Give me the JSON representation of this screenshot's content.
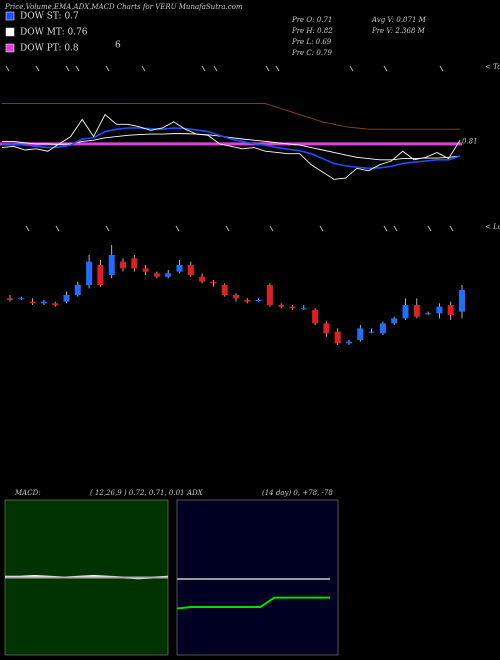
{
  "header": {
    "title": "Price,Volume,EMA,ADX,MACD Charts for VERU MunafaSutra.com",
    "note": "6",
    "legend": [
      {
        "name": "DOW ST: 0.7",
        "color": "#1e4fff"
      },
      {
        "name": "DOW MT: 0.76",
        "color": "#ffffff"
      },
      {
        "name": "DOW PT: 0.8",
        "color": "#e040e0"
      }
    ],
    "stats": [
      "Pre  O: 0.71",
      "Pre  H: 0.82",
      "Pre  L: 0.69",
      "Pre  C: 0.79"
    ],
    "volume": [
      "Avg V: 0.071 M",
      "Pre  V: 2.368 M"
    ],
    "tops": "< Tops",
    "lows": "< Lows"
  },
  "chart_data": [
    {
      "type": "line",
      "ylim": [
        0.55,
        1.0
      ],
      "last_value": 0.81,
      "series": [
        {
          "color": "#8b4513",
          "values": [
            0.965,
            0.965,
            0.965,
            0.965,
            0.965,
            0.965,
            0.965,
            0.965,
            0.965,
            0.965,
            0.965,
            0.965,
            0.965,
            0.965,
            0.965,
            0.965,
            0.965,
            0.965,
            0.965,
            0.965,
            0.965,
            0.965,
            0.965,
            0.965,
            0.95,
            0.935,
            0.92,
            0.905,
            0.89,
            0.88,
            0.87,
            0.865,
            0.86,
            0.86,
            0.86,
            0.86,
            0.86,
            0.86,
            0.86,
            0.86,
            0.86
          ]
        },
        {
          "color": "#ffffff",
          "values": [
            0.81,
            0.81,
            0.805,
            0.8,
            0.8,
            0.798,
            0.8,
            0.81,
            0.815,
            0.825,
            0.83,
            0.835,
            0.838,
            0.84,
            0.84,
            0.842,
            0.842,
            0.84,
            0.837,
            0.832,
            0.826,
            0.82,
            0.815,
            0.81,
            0.805,
            0.8,
            0.795,
            0.785,
            0.775,
            0.765,
            0.755,
            0.745,
            0.74,
            0.735,
            0.735,
            0.74,
            0.74,
            0.742,
            0.742,
            0.745,
            0.75
          ]
        },
        {
          "color": "#1e4fff",
          "values": [
            0.8,
            0.8,
            0.795,
            0.79,
            0.785,
            0.787,
            0.795,
            0.82,
            0.825,
            0.85,
            0.86,
            0.865,
            0.865,
            0.862,
            0.86,
            0.865,
            0.863,
            0.857,
            0.85,
            0.835,
            0.82,
            0.81,
            0.8,
            0.795,
            0.785,
            0.778,
            0.772,
            0.76,
            0.74,
            0.72,
            0.71,
            0.705,
            0.7,
            0.702,
            0.708,
            0.72,
            0.725,
            0.73,
            0.735,
            0.735,
            0.75
          ]
        },
        {
          "color": "#ffffff",
          "values": [
            0.785,
            0.79,
            0.775,
            0.78,
            0.77,
            0.8,
            0.83,
            0.9,
            0.83,
            0.92,
            0.88,
            0.88,
            0.87,
            0.855,
            0.865,
            0.89,
            0.86,
            0.84,
            0.835,
            0.8,
            0.79,
            0.78,
            0.785,
            0.77,
            0.765,
            0.76,
            0.76,
            0.715,
            0.685,
            0.655,
            0.66,
            0.7,
            0.69,
            0.715,
            0.73,
            0.77,
            0.735,
            0.745,
            0.765,
            0.74,
            0.815
          ]
        }
      ],
      "hline": {
        "value": 0.8,
        "color": "#e040e0"
      }
    },
    {
      "type": "candlestick",
      "ylim": [
        0.62,
        0.98
      ],
      "up_color": "#1e6fff",
      "down_color": "#e02020",
      "open": [
        0.79,
        0.79,
        0.78,
        0.775,
        0.775,
        0.78,
        0.8,
        0.83,
        0.89,
        0.86,
        0.9,
        0.91,
        0.88,
        0.865,
        0.855,
        0.87,
        0.89,
        0.855,
        0.84,
        0.83,
        0.8,
        0.785,
        0.785,
        0.83,
        0.77,
        0.765,
        0.76,
        0.755,
        0.715,
        0.69,
        0.655,
        0.665,
        0.69,
        0.685,
        0.715,
        0.73,
        0.77,
        0.745,
        0.745,
        0.77,
        0.75
      ],
      "high": [
        0.8,
        0.795,
        0.79,
        0.785,
        0.78,
        0.81,
        0.84,
        0.92,
        0.905,
        0.95,
        0.91,
        0.92,
        0.89,
        0.87,
        0.875,
        0.905,
        0.9,
        0.865,
        0.845,
        0.835,
        0.805,
        0.79,
        0.79,
        0.835,
        0.775,
        0.77,
        0.77,
        0.76,
        0.72,
        0.7,
        0.665,
        0.71,
        0.7,
        0.72,
        0.735,
        0.79,
        0.79,
        0.75,
        0.775,
        0.78,
        0.83
      ],
      "low": [
        0.78,
        0.785,
        0.77,
        0.77,
        0.765,
        0.775,
        0.795,
        0.82,
        0.825,
        0.85,
        0.87,
        0.87,
        0.86,
        0.85,
        0.85,
        0.865,
        0.855,
        0.835,
        0.825,
        0.795,
        0.78,
        0.775,
        0.78,
        0.765,
        0.76,
        0.755,
        0.755,
        0.71,
        0.675,
        0.65,
        0.65,
        0.66,
        0.685,
        0.68,
        0.71,
        0.725,
        0.73,
        0.74,
        0.73,
        0.725,
        0.73
      ],
      "close": [
        0.785,
        0.79,
        0.775,
        0.78,
        0.77,
        0.8,
        0.83,
        0.9,
        0.83,
        0.92,
        0.88,
        0.88,
        0.87,
        0.855,
        0.865,
        0.89,
        0.86,
        0.84,
        0.835,
        0.8,
        0.79,
        0.78,
        0.785,
        0.77,
        0.765,
        0.76,
        0.76,
        0.715,
        0.685,
        0.655,
        0.66,
        0.7,
        0.69,
        0.715,
        0.73,
        0.77,
        0.735,
        0.745,
        0.765,
        0.74,
        0.815
      ]
    },
    {
      "type": "macd",
      "title": "MACD:",
      "subtitle": "( 12,26,9 ) 0.72, 0.71, 0.01",
      "ylim": [
        -1,
        1
      ],
      "zero": 0,
      "series": [
        {
          "color": "#ffffff",
          "values": [
            0.01,
            0.01,
            0.02,
            0.01,
            0.0,
            0.01,
            0.02,
            0.01,
            0.0,
            -0.01,
            0.0,
            0.01
          ]
        },
        {
          "color": "#aaaaaa",
          "values": [
            0.0,
            0.0,
            0.0,
            0.0,
            0.0,
            0.0,
            0.0,
            0.0,
            0.0,
            0.0,
            0.0,
            0.0
          ]
        }
      ]
    },
    {
      "type": "adx",
      "title": "ADX",
      "subtitle": "(14  day) 0, +78, -78",
      "ylim": [
        0,
        100
      ],
      "series": [
        {
          "color": "#999999",
          "values": [
            49,
            49,
            49,
            49,
            49,
            49,
            49,
            49,
            49,
            49,
            49,
            49
          ]
        },
        {
          "color": "#00dd00",
          "values": [
            30,
            31,
            31,
            31,
            31,
            31,
            31,
            37,
            37,
            37,
            37,
            37
          ]
        }
      ]
    }
  ]
}
